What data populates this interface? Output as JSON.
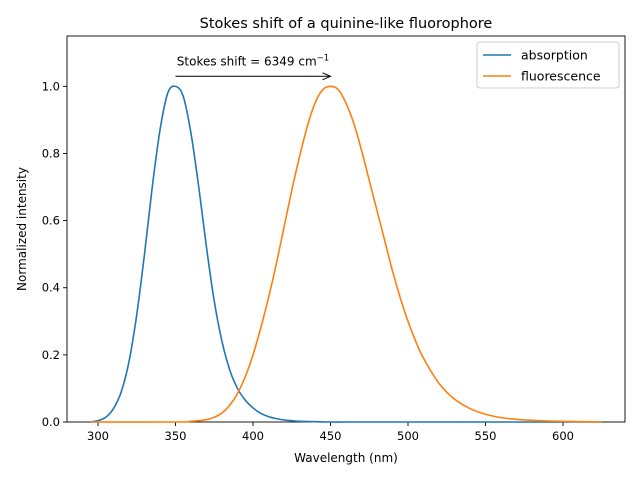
{
  "chart_data": {
    "type": "line",
    "title": "Stokes shift of a quinine-like fluorophore",
    "xlabel": "Wavelength (nm)",
    "ylabel": "Normalized intensity",
    "xlim": [
      280,
      640
    ],
    "ylim": [
      0,
      1.15
    ],
    "xticks": [
      300,
      350,
      400,
      450,
      500,
      550,
      600
    ],
    "yticks": [
      0.0,
      0.2,
      0.4,
      0.6,
      0.8,
      1.0
    ],
    "xtick_labels": [
      "300",
      "350",
      "400",
      "450",
      "500",
      "550",
      "600"
    ],
    "ytick_labels": [
      "0.0",
      "0.2",
      "0.4",
      "0.6",
      "0.8",
      "1.0"
    ],
    "grid": false,
    "legend_position": "top-right",
    "series": [
      {
        "name": "absorption",
        "color": "#1f77b4",
        "x": [
          295,
          300,
          305,
          310,
          315,
          320,
          325,
          330,
          335,
          340,
          345,
          350,
          355,
          360,
          365,
          370,
          375,
          380,
          385,
          390,
          395,
          400,
          405,
          410,
          415,
          420,
          425,
          430,
          440,
          450,
          460,
          480,
          500,
          550,
          600,
          625
        ],
        "y": [
          0.0,
          0.004,
          0.014,
          0.04,
          0.09,
          0.18,
          0.32,
          0.5,
          0.7,
          0.87,
          0.98,
          1.0,
          0.97,
          0.86,
          0.7,
          0.52,
          0.36,
          0.24,
          0.155,
          0.1,
          0.065,
          0.042,
          0.026,
          0.016,
          0.01,
          0.006,
          0.004,
          0.002,
          0.001,
          0.0,
          0.0,
          0.0,
          0.0,
          0.0,
          0.0,
          0.0
        ]
      },
      {
        "name": "fluorescence",
        "color": "#ff7f0e",
        "x": [
          295,
          350,
          360,
          370,
          375,
          380,
          385,
          390,
          395,
          400,
          405,
          410,
          415,
          420,
          425,
          430,
          435,
          440,
          445,
          450,
          455,
          460,
          465,
          470,
          475,
          480,
          485,
          490,
          495,
          500,
          505,
          510,
          520,
          530,
          540,
          550,
          560,
          570,
          580,
          590,
          600,
          610,
          625
        ],
        "y": [
          0.0,
          0.0,
          0.002,
          0.007,
          0.014,
          0.027,
          0.05,
          0.085,
          0.135,
          0.2,
          0.28,
          0.37,
          0.47,
          0.58,
          0.69,
          0.79,
          0.88,
          0.95,
          0.99,
          1.0,
          0.99,
          0.95,
          0.89,
          0.81,
          0.72,
          0.63,
          0.54,
          0.45,
          0.37,
          0.3,
          0.24,
          0.19,
          0.115,
          0.068,
          0.04,
          0.023,
          0.013,
          0.008,
          0.005,
          0.003,
          0.002,
          0.001,
          0.0
        ]
      }
    ],
    "annotation": {
      "text_main": "Stokes shift = 6349 cm",
      "text_sup": "−1",
      "arrow_from": [
        350,
        1.03
      ],
      "arrow_to": [
        450,
        1.03
      ]
    }
  }
}
